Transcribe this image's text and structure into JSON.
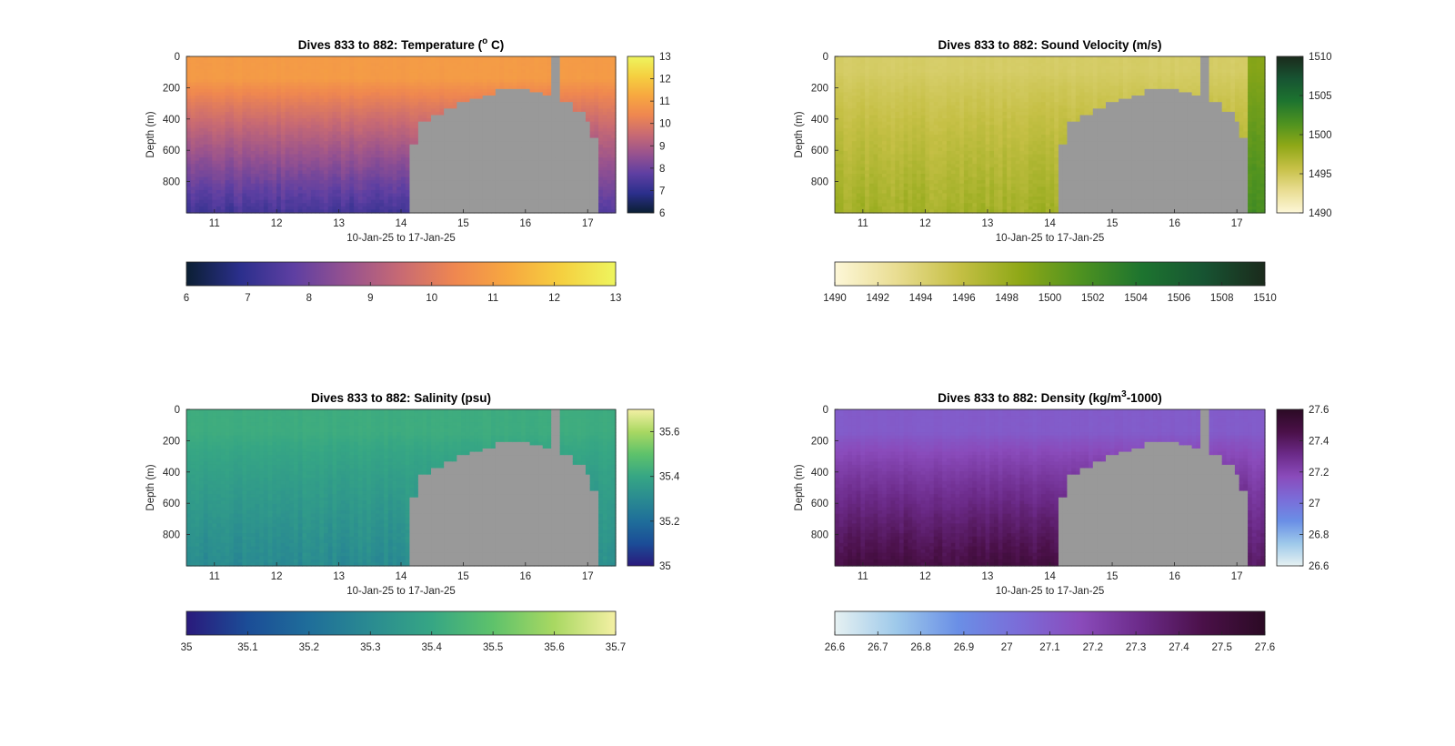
{
  "chart_data": [
    {
      "id": "temperature",
      "type": "heatmap",
      "title_parts": [
        "Dives 833 to 882: Temperature (",
        "o",
        " C)"
      ],
      "title_style": "superscript",
      "xlabel": "10-Jan-25 to 17-Jan-25",
      "ylabel": "Depth (m)",
      "x_ticks": [
        "11",
        "12",
        "13",
        "14",
        "15",
        "16",
        "17"
      ],
      "x_tick_values": [
        11,
        12,
        13,
        14,
        15,
        16,
        17
      ],
      "xlim": [
        10.55,
        17.45
      ],
      "y_ticks": [
        "0",
        "200",
        "400",
        "600",
        "800"
      ],
      "y_tick_values": [
        0,
        200,
        400,
        600,
        800
      ],
      "ylim": [
        0,
        1000
      ],
      "y_reversed": true,
      "colormap": [
        "#0b1f33",
        "#2b2f8c",
        "#5e3fa2",
        "#97528f",
        "#c86a73",
        "#ef8750",
        "#f7a840",
        "#f5d040",
        "#eef55e"
      ],
      "clim": [
        6,
        13
      ],
      "colorbar_ticks": [
        "13",
        "12",
        "11",
        "10",
        "9",
        "8",
        "7",
        "6"
      ],
      "colorbar_tick_values": [
        13,
        12,
        11,
        10,
        9,
        8,
        7,
        6
      ],
      "hcolorbar_ticks": [
        "6",
        "7",
        "8",
        "9",
        "10",
        "11",
        "12",
        "13"
      ],
      "hcolorbar_tick_values": [
        6,
        7,
        8,
        9,
        10,
        11,
        12,
        13
      ],
      "field": {
        "surface": 10.9,
        "deep": 7.3,
        "mixed_depth": 150,
        "late_surface": 10.9,
        "late_deep": 7.6
      },
      "nodata_color": "#999999"
    },
    {
      "id": "sound-velocity",
      "type": "heatmap",
      "title_parts": [
        "Dives 833 to 882: Sound Velocity (m/s)"
      ],
      "title_style": "plain",
      "xlabel": "10-Jan-25 to 17-Jan-25",
      "ylabel": "Depth (m)",
      "x_ticks": [
        "11",
        "12",
        "13",
        "14",
        "15",
        "16",
        "17"
      ],
      "x_tick_values": [
        11,
        12,
        13,
        14,
        15,
        16,
        17
      ],
      "xlim": [
        10.55,
        17.45
      ],
      "y_ticks": [
        "0",
        "200",
        "400",
        "600",
        "800"
      ],
      "y_tick_values": [
        0,
        200,
        400,
        600,
        800
      ],
      "ylim": [
        0,
        1000
      ],
      "y_reversed": true,
      "colormap": [
        "#fdf7d8",
        "#e9dd92",
        "#c6c046",
        "#8fa817",
        "#4e9220",
        "#1d742f",
        "#175432",
        "#1b2a1c"
      ],
      "clim": [
        1490,
        1510
      ],
      "colorbar_ticks": [
        "1510",
        "1505",
        "1500",
        "1495",
        "1490"
      ],
      "colorbar_tick_values": [
        1510,
        1505,
        1500,
        1495,
        1490
      ],
      "hcolorbar_ticks": [
        "1490",
        "1492",
        "1494",
        "1496",
        "1498",
        "1500",
        "1502",
        "1504",
        "1506",
        "1508",
        "1510"
      ],
      "hcolorbar_tick_values": [
        1490,
        1492,
        1494,
        1496,
        1498,
        1500,
        1502,
        1504,
        1506,
        1508,
        1510
      ],
      "field": {
        "surface": 1494.5,
        "deep": 1497.5,
        "mixed_depth": 100,
        "late_surface": 1499.0,
        "late_deep": 1502.0
      },
      "nodata_color": "#999999"
    },
    {
      "id": "salinity",
      "type": "heatmap",
      "title_parts": [
        "Dives 833 to 882: Salinity (psu)"
      ],
      "title_style": "plain",
      "xlabel": "10-Jan-25 to 17-Jan-25",
      "ylabel": "Depth (m)",
      "x_ticks": [
        "11",
        "12",
        "13",
        "14",
        "15",
        "16",
        "17"
      ],
      "x_tick_values": [
        11,
        12,
        13,
        14,
        15,
        16,
        17
      ],
      "xlim": [
        10.55,
        17.45
      ],
      "y_ticks": [
        "0",
        "200",
        "400",
        "600",
        "800"
      ],
      "y_tick_values": [
        0,
        200,
        400,
        600,
        800
      ],
      "ylim": [
        0,
        1000
      ],
      "y_reversed": true,
      "colormap": [
        "#2a1a7c",
        "#1b4d97",
        "#1f6e9a",
        "#2a8b91",
        "#36a684",
        "#5ec26b",
        "#a9d862",
        "#f4f0a4"
      ],
      "clim": [
        35,
        35.7
      ],
      "colorbar_ticks": [
        "35.6",
        "35.4",
        "35.2",
        "35"
      ],
      "colorbar_tick_values": [
        35.6,
        35.4,
        35.2,
        35
      ],
      "hcolorbar_ticks": [
        "35",
        "35.1",
        "35.2",
        "35.3",
        "35.4",
        "35.5",
        "35.6",
        "35.7"
      ],
      "hcolorbar_tick_values": [
        35,
        35.1,
        35.2,
        35.3,
        35.4,
        35.5,
        35.6,
        35.7
      ],
      "field": {
        "surface": 35.42,
        "deep": 35.3,
        "mixed_depth": 150,
        "late_surface": 35.42,
        "late_deep": 35.33
      },
      "nodata_color": "#999999"
    },
    {
      "id": "density",
      "type": "heatmap",
      "title_parts": [
        "Dives 833 to 882: Density (kg/m",
        "3",
        "-1000)"
      ],
      "title_style": "superscript",
      "xlabel": "10-Jan-25 to 17-Jan-25",
      "ylabel": "Depth (m)",
      "x_ticks": [
        "11",
        "12",
        "13",
        "14",
        "15",
        "16",
        "17"
      ],
      "x_tick_values": [
        11,
        12,
        13,
        14,
        15,
        16,
        17
      ],
      "xlim": [
        10.55,
        17.45
      ],
      "y_ticks": [
        "0",
        "200",
        "400",
        "600",
        "800"
      ],
      "y_tick_values": [
        0,
        200,
        400,
        600,
        800
      ],
      "ylim": [
        0,
        1000
      ],
      "y_reversed": true,
      "colormap": [
        "#e6f1f2",
        "#9ec9ea",
        "#6a8fe6",
        "#7b6cd8",
        "#8a4bbb",
        "#6b2a88",
        "#4a1048",
        "#2b0a24"
      ],
      "clim": [
        26.6,
        27.6
      ],
      "colorbar_ticks": [
        "27.6",
        "27.4",
        "27.2",
        "27",
        "26.8",
        "26.6"
      ],
      "colorbar_tick_values": [
        27.6,
        27.4,
        27.2,
        27,
        26.8,
        26.6
      ],
      "hcolorbar_ticks": [
        "26.6",
        "26.7",
        "26.8",
        "26.9",
        "27",
        "27.1",
        "27.2",
        "27.3",
        "27.4",
        "27.5",
        "27.6"
      ],
      "hcolorbar_tick_values": [
        26.6,
        26.7,
        26.8,
        26.9,
        27,
        27.1,
        27.2,
        27.3,
        27.4,
        27.5,
        27.6
      ],
      "field": {
        "surface": 27.1,
        "deep": 27.48,
        "mixed_depth": 150,
        "late_surface": 27.1,
        "late_deep": 27.4
      },
      "nodata_color": "#999999"
    }
  ]
}
